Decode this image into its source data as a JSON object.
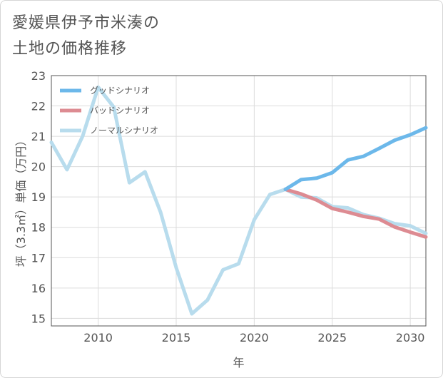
{
  "title": {
    "line1": "愛媛県伊予市米湊の",
    "line2": "土地の価格推移"
  },
  "chart_data": {
    "type": "line",
    "title": "愛媛県伊予市米湊の土地の価格推移",
    "xlabel": "年",
    "ylabel": "坪（3.3㎡）単価（万円）",
    "xlim": [
      2007,
      2031
    ],
    "ylim": [
      14.75,
      23
    ],
    "xticks": [
      2010,
      2015,
      2020,
      2025,
      2030
    ],
    "yticks": [
      15,
      16,
      17,
      18,
      19,
      20,
      21,
      22,
      23
    ],
    "grid": true,
    "legend_position": "top-left",
    "series": [
      {
        "name": "グッドシナリオ",
        "color": "#6cb8ea",
        "x": [
          2022,
          2023,
          2024,
          2025,
          2026,
          2027,
          2028,
          2029,
          2030,
          2031
        ],
        "values": [
          19.25,
          19.57,
          19.62,
          19.8,
          20.22,
          20.34,
          20.6,
          20.87,
          21.05,
          21.28
        ]
      },
      {
        "name": "バッドシナリオ",
        "color": "#dd8b92",
        "x": [
          2022,
          2023,
          2024,
          2025,
          2026,
          2027,
          2028,
          2029,
          2030,
          2031
        ],
        "values": [
          19.25,
          19.1,
          18.9,
          18.62,
          18.5,
          18.36,
          18.27,
          18.01,
          17.84,
          17.68
        ]
      },
      {
        "name": "ノーマルシナリオ",
        "color": "#b8dced",
        "x": [
          2007,
          2008,
          2009,
          2010,
          2011,
          2012,
          2013,
          2014,
          2015,
          2016,
          2017,
          2018,
          2019,
          2020,
          2021,
          2022,
          2023,
          2024,
          2025,
          2026,
          2027,
          2028,
          2029,
          2030,
          2031
        ],
        "values": [
          20.8,
          19.9,
          21.0,
          22.62,
          21.96,
          19.47,
          19.83,
          18.5,
          16.67,
          15.15,
          15.6,
          16.6,
          16.8,
          18.25,
          19.08,
          19.25,
          19.0,
          18.97,
          18.68,
          18.64,
          18.42,
          18.3,
          18.12,
          18.05,
          17.8
        ]
      }
    ]
  }
}
